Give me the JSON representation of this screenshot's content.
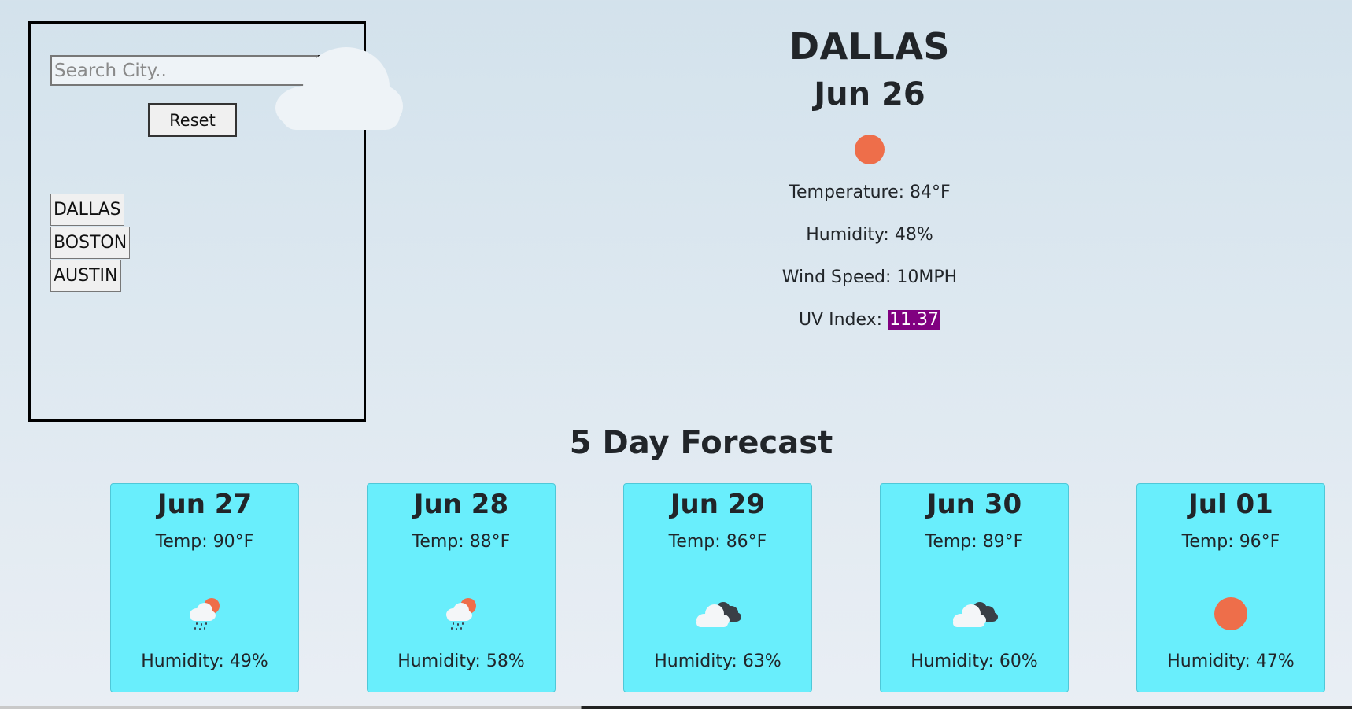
{
  "search": {
    "placeholder": "Search City..",
    "value": "",
    "reset_label": "Reset"
  },
  "history": {
    "items": [
      "DALLAS",
      "BOSTON",
      "AUSTIN"
    ]
  },
  "current": {
    "city": "DALLAS",
    "date": "Jun 26",
    "icon": "sun-icon",
    "temperature_label": "Temperature: ",
    "temperature_value": "84°F",
    "humidity_label": "Humidity: ",
    "humidity_value": "48%",
    "wind_label": "Wind Speed: ",
    "wind_value": "10MPH",
    "uv_label": "UV Index: ",
    "uv_value": "11.37"
  },
  "forecast": {
    "title": "5 Day Forecast",
    "days": [
      {
        "date": "Jun 27",
        "temp_label": "Temp: ",
        "temp": "90°F",
        "icon": "sun-rain-cloud-icon",
        "humidity_label": "Humidity: ",
        "humidity": "49%"
      },
      {
        "date": "Jun 28",
        "temp_label": "Temp: ",
        "temp": "88°F",
        "icon": "sun-rain-cloud-icon",
        "humidity_label": "Humidity: ",
        "humidity": "58%"
      },
      {
        "date": "Jun 29",
        "temp_label": "Temp: ",
        "temp": "86°F",
        "icon": "broken-clouds-icon",
        "humidity_label": "Humidity: ",
        "humidity": "63%"
      },
      {
        "date": "Jun 30",
        "temp_label": "Temp: ",
        "temp": "89°F",
        "icon": "broken-clouds-icon",
        "humidity_label": "Humidity: ",
        "humidity": "60%"
      },
      {
        "date": "Jul 01",
        "temp_label": "Temp: ",
        "temp": "96°F",
        "icon": "sun-icon",
        "humidity_label": "Humidity: ",
        "humidity": "47%"
      }
    ]
  },
  "colors": {
    "sun": "#ee6e4a",
    "uv_badge": "#800080",
    "card_bg": "#69eefc"
  }
}
